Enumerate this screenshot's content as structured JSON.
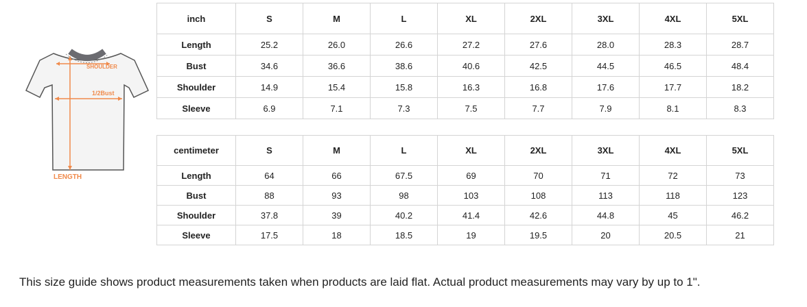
{
  "diagram": {
    "shoulder_label": "SHOULDER",
    "bust_label": "1/2Bust",
    "length_label": "LENGTH",
    "accent_color": "#f08a4b"
  },
  "inch_table": {
    "unit": "inch",
    "sizes": [
      "S",
      "M",
      "L",
      "XL",
      "2XL",
      "3XL",
      "4XL",
      "5XL"
    ],
    "rows": [
      {
        "label": "Length",
        "values": [
          "25.2",
          "26.0",
          "26.6",
          "27.2",
          "27.6",
          "28.0",
          "28.3",
          "28.7"
        ]
      },
      {
        "label": "Bust",
        "values": [
          "34.6",
          "36.6",
          "38.6",
          "40.6",
          "42.5",
          "44.5",
          "46.5",
          "48.4"
        ]
      },
      {
        "label": "Shoulder",
        "values": [
          "14.9",
          "15.4",
          "15.8",
          "16.3",
          "16.8",
          "17.6",
          "17.7",
          "18.2"
        ]
      },
      {
        "label": "Sleeve",
        "values": [
          "6.9",
          "7.1",
          "7.3",
          "7.5",
          "7.7",
          "7.9",
          "8.1",
          "8.3"
        ]
      }
    ]
  },
  "cm_table": {
    "unit": "centimeter",
    "sizes": [
      "S",
      "M",
      "L",
      "XL",
      "2XL",
      "3XL",
      "4XL",
      "5XL"
    ],
    "rows": [
      {
        "label": "Length",
        "values": [
          "64",
          "66",
          "67.5",
          "69",
          "70",
          "71",
          "72",
          "73"
        ]
      },
      {
        "label": "Bust",
        "values": [
          "88",
          "93",
          "98",
          "103",
          "108",
          "113",
          "118",
          "123"
        ]
      },
      {
        "label": "Shoulder",
        "values": [
          "37.8",
          "39",
          "40.2",
          "41.4",
          "42.6",
          "44.8",
          "45",
          "46.2"
        ]
      },
      {
        "label": "Sleeve",
        "values": [
          "17.5",
          "18",
          "18.5",
          "19",
          "19.5",
          "20",
          "20.5",
          "21"
        ]
      }
    ]
  },
  "note": "This size guide shows product measurements taken when products are laid flat. Actual product measurements may vary by up to 1\"."
}
